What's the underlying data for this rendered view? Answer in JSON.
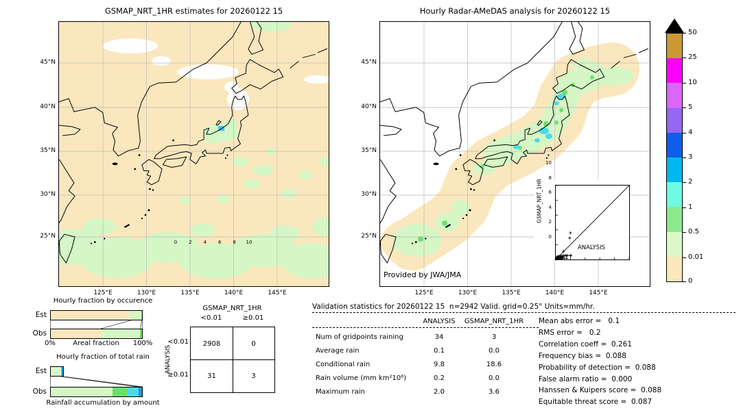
{
  "left_map": {
    "title": "GSMAP_NRT_1HR estimates for 20260122 15"
  },
  "right_map": {
    "title": "Hourly Radar-AMeDAS analysis for 20260122 15",
    "credit": "Provided by JWA/JMA"
  },
  "map_axes": {
    "x": [
      "125°E",
      "130°E",
      "135°E",
      "140°E",
      "145°E"
    ],
    "y": [
      "45°N",
      "40°N",
      "35°N",
      "30°N",
      "25°N"
    ]
  },
  "colorbar": {
    "ticks": [
      "50",
      "25",
      "10",
      "5",
      "4",
      "3",
      "2",
      "1",
      "0.5",
      "0.01",
      "0"
    ],
    "colors": [
      "#cc9834",
      "#fa00fa",
      "#dc66fa",
      "#9468f0",
      "#0f5deb",
      "#00b8ec",
      "#6dfbe3",
      "#8cea8c",
      "#dcf8c8",
      "#fbe7bd"
    ]
  },
  "occurrence": {
    "title": "Hourly fraction by occurence",
    "row_labels": [
      "Est",
      "Obs"
    ],
    "x_min_label": "0%",
    "x_axis_label": "Areal fraction",
    "x_max_label": "100%",
    "est": {
      "width": "100%",
      "segments": [
        {
          "w": "87%",
          "c": "#fbe7bd"
        },
        {
          "w": "12%",
          "c": "#d5f6c5"
        },
        {
          "w": "1%",
          "c": "#6ce06c"
        }
      ]
    },
    "obs": {
      "width": "100%",
      "segments": [
        {
          "w": "55%",
          "c": "#fbe7bd"
        },
        {
          "w": "43%",
          "c": "#d5f6c5"
        },
        {
          "w": "1%",
          "c": "#6ce06c"
        },
        {
          "w": "1%",
          "c": "#49dce8"
        }
      ]
    }
  },
  "totalrain": {
    "title": "Hourly fraction of total rain",
    "row_labels": [
      "Est",
      "Obs"
    ],
    "x_axis_label": "Rainfall accumulation by amount",
    "est": {
      "width": "15%",
      "segments": [
        {
          "w": "80%",
          "c": "#d5f6c5"
        },
        {
          "w": "10%",
          "c": "#49dce8"
        },
        {
          "w": "10%",
          "c": "#1899e8"
        }
      ]
    },
    "obs": {
      "width": "100%",
      "segments": [
        {
          "w": "68%",
          "c": "#d5f6c5"
        },
        {
          "w": "16%",
          "c": "#6ce06c"
        },
        {
          "w": "12%",
          "c": "#49dce8"
        },
        {
          "w": "4%",
          "c": "#1899e8"
        }
      ]
    }
  },
  "contingency": {
    "col_header": "GSMAP_NRT_1HR",
    "row_header": "ANALYSIS",
    "col_labels": [
      "<0.01",
      "≥0.01"
    ],
    "row_labels": [
      "<0.01",
      "≥0.01"
    ],
    "cells": [
      [
        "2908",
        "0"
      ],
      [
        "31",
        "3"
      ]
    ]
  },
  "stats": {
    "title": "Validation statistics for 20260122 15  n=2942 Valid. grid=0.25° Units=mm/hr.",
    "columns": [
      "ANALYSIS",
      "GSMAP_NRT_1HR"
    ],
    "rows": [
      {
        "label": "Num of gridpoints raining",
        "analysis": "34",
        "gsmap": "3"
      },
      {
        "label": "Average rain",
        "analysis": "0.1",
        "gsmap": "0.0"
      },
      {
        "label": "Conditional rain",
        "analysis": "9.8",
        "gsmap": "18.6"
      },
      {
        "label": "Rain volume (mm km²10⁶)",
        "analysis": "0.2",
        "gsmap": "0.0"
      },
      {
        "label": "Maximum rain",
        "analysis": "2.0",
        "gsmap": "3.6"
      }
    ]
  },
  "metrics": {
    "lines": [
      "Mean abs error =   0.1",
      "RMS error =   0.2",
      "Correlation coeff =  0.261",
      "Frequency bias =  0.088",
      "Probability of detection =  0.088",
      "False alarm ratio =  0.000",
      "Hanssen & Kuipers score =  0.088",
      "Equitable threat score =  0.087"
    ]
  },
  "inset": {
    "ylabel": "GSMAP_NRT_1HR",
    "xlabel": "ANALYSIS",
    "ticks": [
      "0",
      "2",
      "4",
      "6",
      "8",
      "10"
    ]
  },
  "chart_data": [
    {
      "type": "map",
      "panel": "left",
      "title": "GSMAP_NRT_1HR estimates for 20260122 15",
      "lon_ticks": [
        "125°E",
        "130°E",
        "135°E",
        "140°E",
        "145°E"
      ],
      "lat_ticks": [
        "45°N",
        "40°N",
        "35°N",
        "30°N",
        "25°N"
      ],
      "colorbar_levels_mm_hr": [
        0,
        0.01,
        0.5,
        1,
        2,
        3,
        4,
        5,
        10,
        25,
        50
      ],
      "features": "Entire domain shaded 0-0.01 cream; light-rain (0.01-0.5) patches over central Honshu near 37N 138-140E, scattered south of Honshu, and a broad band near 23-27N; small 1-2 mm/hr spot near 37.3N 138.8E; white no-data patches near 46-47N and 43-44N"
    },
    {
      "type": "map",
      "panel": "right",
      "title": "Hourly Radar-AMeDAS analysis for 20260122 15",
      "credit": "Provided by JWA/JMA",
      "lon_ticks": [
        "125°E",
        "130°E",
        "135°E",
        "140°E",
        "145°E"
      ],
      "lat_ticks": [
        "45°N",
        "40°N",
        "35°N",
        "30°N",
        "25°N"
      ],
      "features": "Radar coverage swath along the Japanese archipelago from Okinawa (24N) to Hokkaido (44N): cream 0-0.01 fringe, light-green 0.01-0.5 core, 1-2 mm/hr cyan cells near 37N 139E and 40-41N 141E; rest of domain white (no coverage)"
    },
    {
      "type": "bar",
      "title": "Hourly fraction by occurence",
      "orientation": "horizontal-stacked",
      "xlabel": "Areal fraction",
      "xlim_pct": [
        0,
        100
      ],
      "categories": [
        "Est",
        "Obs"
      ],
      "series": [
        {
          "name": "0-0.01 mm/hr",
          "color": "#fbe7bd",
          "values_pct": [
            87,
            55
          ]
        },
        {
          "name": "0.01-0.5 mm/hr",
          "color": "#d5f6c5",
          "values_pct": [
            12,
            43
          ]
        },
        {
          "name": "0.5-1 mm/hr",
          "color": "#6ce06c",
          "values_pct": [
            1,
            1
          ]
        },
        {
          "name": "1-2 mm/hr",
          "color": "#49dce8",
          "values_pct": [
            0,
            1
          ]
        }
      ]
    },
    {
      "type": "bar",
      "title": "Hourly fraction of total rain",
      "orientation": "horizontal-stacked",
      "xlabel": "Rainfall accumulation by amount",
      "xlim_pct": [
        0,
        100
      ],
      "categories": [
        "Est",
        "Obs"
      ],
      "series": [
        {
          "name": "0.01-0.5 mm/hr",
          "color": "#d5f6c5",
          "values_pct": [
            12,
            68
          ]
        },
        {
          "name": "0.5-1 mm/hr",
          "color": "#6ce06c",
          "values_pct": [
            0,
            16
          ]
        },
        {
          "name": "1-2 mm/hr",
          "color": "#49dce8",
          "values_pct": [
            1.5,
            12
          ]
        },
        {
          "name": "2-3 mm/hr",
          "color": "#1899e8",
          "values_pct": [
            1.5,
            4
          ]
        }
      ]
    },
    {
      "type": "table",
      "title": "Contingency of raining gridpoints",
      "col_dimension": "GSMAP_NRT_1HR",
      "row_dimension": "ANALYSIS",
      "columns": [
        "<0.01",
        "≥0.01"
      ],
      "rows": [
        "<0.01",
        "≥0.01"
      ],
      "values": [
        [
          2908,
          0
        ],
        [
          31,
          3
        ]
      ]
    },
    {
      "type": "table",
      "title": "Validation statistics for 20260122 15  n=2942 Valid. grid=0.25° Units=mm/hr.",
      "columns": [
        "ANALYSIS",
        "GSMAP_NRT_1HR"
      ],
      "rows": [
        [
          "Num of gridpoints raining",
          34,
          3
        ],
        [
          "Average rain",
          0.1,
          0.0
        ],
        [
          "Conditional rain",
          9.8,
          18.6
        ],
        [
          "Rain volume (mm km²10⁶)",
          0.2,
          0.0
        ],
        [
          "Maximum rain",
          2.0,
          3.6
        ]
      ]
    },
    {
      "type": "scatter",
      "xlabel": "ANALYSIS",
      "ylabel": "GSMAP_NRT_1HR",
      "xlim": [
        0,
        10
      ],
      "ylim": [
        0,
        10
      ],
      "identity_line": true,
      "points": [
        [
          0.05,
          0.05
        ],
        [
          0.1,
          0.15
        ],
        [
          0.15,
          0.3
        ],
        [
          0.2,
          0.1
        ],
        [
          0.25,
          0.4
        ],
        [
          0.3,
          0.05
        ],
        [
          0.35,
          0.2
        ],
        [
          0.4,
          0.45
        ],
        [
          0.45,
          0.1
        ],
        [
          0.5,
          0.3
        ],
        [
          0.55,
          0.05
        ],
        [
          0.6,
          0.5
        ],
        [
          0.65,
          0.15
        ],
        [
          0.7,
          0.35
        ],
        [
          0.75,
          0.1
        ],
        [
          0.8,
          0.45
        ],
        [
          0.85,
          0.25
        ],
        [
          0.9,
          0.1
        ],
        [
          0.95,
          0.5
        ],
        [
          1.0,
          0.3
        ],
        [
          1.05,
          1.1
        ],
        [
          1.1,
          0.5
        ],
        [
          1.2,
          0.15
        ],
        [
          1.3,
          0.55
        ],
        [
          1.45,
          0.5
        ],
        [
          1.5,
          0.15
        ],
        [
          1.6,
          0.55
        ],
        [
          1.9,
          2.9
        ],
        [
          2.0,
          3.6
        ],
        [
          2.0,
          0.55
        ],
        [
          2.05,
          0.5
        ]
      ]
    },
    {
      "type": "metrics",
      "values": {
        "mean_abs_error": 0.1,
        "rms_error": 0.2,
        "correlation_coeff": 0.261,
        "frequency_bias": 0.088,
        "probability_of_detection": 0.088,
        "false_alarm_ratio": 0.0,
        "hanssen_kuipers_score": 0.088,
        "equitable_threat_score": 0.087
      }
    }
  ]
}
